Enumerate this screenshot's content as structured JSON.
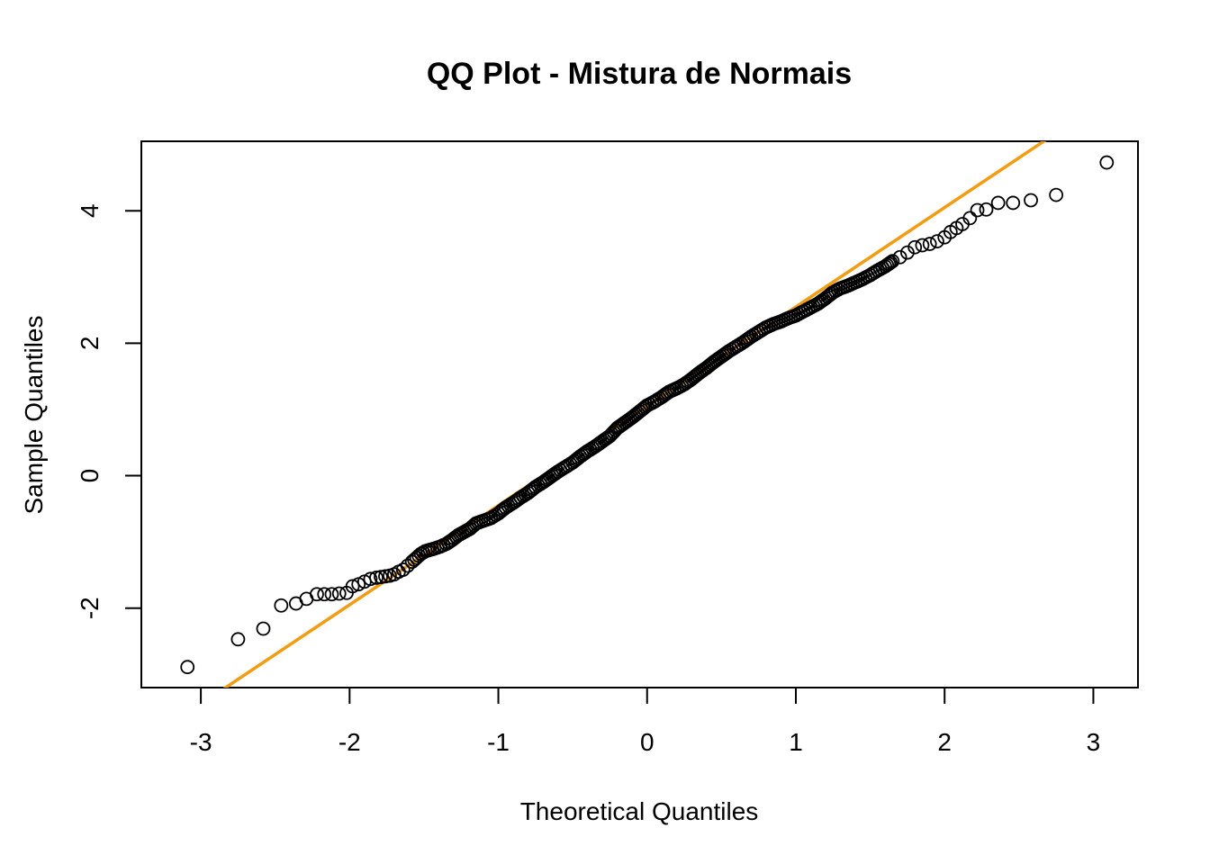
{
  "chart_data": {
    "type": "scatter",
    "title": "QQ Plot - Mistura de Normais",
    "xlabel": "Theoretical Quantiles",
    "ylabel": "Sample Quantiles",
    "xlim": [
      -3.4,
      3.3
    ],
    "ylim": [
      -3.2,
      5.05
    ],
    "x_ticks": [
      -3,
      -2,
      -1,
      0,
      1,
      2,
      3
    ],
    "y_ticks": [
      -2,
      0,
      2,
      4
    ],
    "grid": false,
    "legend": "none",
    "reference_line": {
      "intercept": 1.05,
      "slope": 1.5,
      "color": "#f39c12"
    },
    "point_color": "#000000",
    "series": [
      {
        "points": [
          [
            -3.09,
            -2.89
          ],
          [
            -2.75,
            -2.47
          ],
          [
            -2.58,
            -2.31
          ],
          [
            -2.46,
            -1.96
          ],
          [
            -2.36,
            -1.93
          ],
          [
            -2.29,
            -1.86
          ],
          [
            -2.22,
            -1.79
          ],
          [
            -2.17,
            -1.79
          ],
          [
            -2.12,
            -1.79
          ],
          [
            -2.07,
            -1.78
          ],
          [
            -2.02,
            -1.77
          ],
          [
            -1.98,
            -1.67
          ],
          [
            -1.94,
            -1.64
          ],
          [
            -1.9,
            -1.6
          ],
          [
            -1.86,
            -1.56
          ],
          [
            -1.82,
            -1.54
          ],
          [
            -1.79,
            -1.53
          ],
          [
            -1.76,
            -1.52
          ],
          [
            -1.73,
            -1.51
          ],
          [
            -1.7,
            -1.49
          ],
          [
            -1.67,
            -1.45
          ],
          [
            -1.64,
            -1.42
          ],
          [
            -1.61,
            -1.36
          ],
          [
            -1.58,
            -1.3
          ],
          [
            -1.55,
            -1.24
          ],
          [
            -1.52,
            -1.18
          ],
          [
            -1.49,
            -1.14
          ],
          [
            -1.46,
            -1.12
          ],
          [
            -1.43,
            -1.1
          ],
          [
            -1.39,
            -1.07
          ],
          [
            -1.35,
            -1.03
          ],
          [
            -1.31,
            -0.97
          ],
          [
            -1.27,
            -0.9
          ],
          [
            -1.23,
            -0.85
          ],
          [
            -1.19,
            -0.8
          ],
          [
            -1.15,
            -0.72
          ],
          [
            -1.1,
            -0.68
          ],
          [
            -1.05,
            -0.64
          ],
          [
            -1.0,
            -0.57
          ],
          [
            -0.95,
            -0.48
          ],
          [
            -0.9,
            -0.41
          ],
          [
            -0.85,
            -0.33
          ],
          [
            -0.8,
            -0.26
          ],
          [
            -0.75,
            -0.17
          ],
          [
            -0.7,
            -0.1
          ],
          [
            -0.65,
            -0.02
          ],
          [
            -0.6,
            0.06
          ],
          [
            -0.55,
            0.13
          ],
          [
            -0.5,
            0.2
          ],
          [
            -0.45,
            0.29
          ],
          [
            -0.4,
            0.37
          ],
          [
            -0.35,
            0.44
          ],
          [
            -0.3,
            0.52
          ],
          [
            -0.25,
            0.6
          ],
          [
            -0.2,
            0.72
          ],
          [
            -0.15,
            0.8
          ],
          [
            -0.1,
            0.88
          ],
          [
            -0.05,
            0.97
          ],
          [
            0.0,
            1.06
          ],
          [
            0.05,
            1.12
          ],
          [
            0.1,
            1.19
          ],
          [
            0.15,
            1.27
          ],
          [
            0.2,
            1.32
          ],
          [
            0.25,
            1.38
          ],
          [
            0.3,
            1.46
          ],
          [
            0.35,
            1.55
          ],
          [
            0.4,
            1.63
          ],
          [
            0.45,
            1.72
          ],
          [
            0.5,
            1.8
          ],
          [
            0.55,
            1.88
          ],
          [
            0.6,
            1.95
          ],
          [
            0.65,
            2.02
          ],
          [
            0.7,
            2.1
          ],
          [
            0.75,
            2.17
          ],
          [
            0.8,
            2.24
          ],
          [
            0.85,
            2.29
          ],
          [
            0.9,
            2.33
          ],
          [
            0.95,
            2.38
          ],
          [
            1.0,
            2.42
          ],
          [
            1.05,
            2.48
          ],
          [
            1.1,
            2.54
          ],
          [
            1.15,
            2.6
          ],
          [
            1.2,
            2.68
          ],
          [
            1.25,
            2.77
          ],
          [
            1.3,
            2.83
          ],
          [
            1.35,
            2.87
          ],
          [
            1.4,
            2.92
          ],
          [
            1.45,
            2.97
          ],
          [
            1.5,
            3.03
          ],
          [
            1.55,
            3.1
          ],
          [
            1.6,
            3.16
          ],
          [
            1.65,
            3.24
          ],
          [
            1.7,
            3.3
          ],
          [
            1.75,
            3.37
          ],
          [
            1.8,
            3.45
          ],
          [
            1.85,
            3.48
          ],
          [
            1.9,
            3.5
          ],
          [
            1.95,
            3.54
          ],
          [
            2.0,
            3.6
          ],
          [
            2.04,
            3.68
          ],
          [
            2.08,
            3.74
          ],
          [
            2.12,
            3.8
          ],
          [
            2.17,
            3.89
          ],
          [
            2.22,
            4.01
          ],
          [
            2.28,
            4.02
          ],
          [
            2.36,
            4.12
          ],
          [
            2.46,
            4.12
          ],
          [
            2.58,
            4.16
          ],
          [
            2.75,
            4.24
          ],
          [
            3.09,
            4.73
          ]
        ]
      }
    ]
  }
}
